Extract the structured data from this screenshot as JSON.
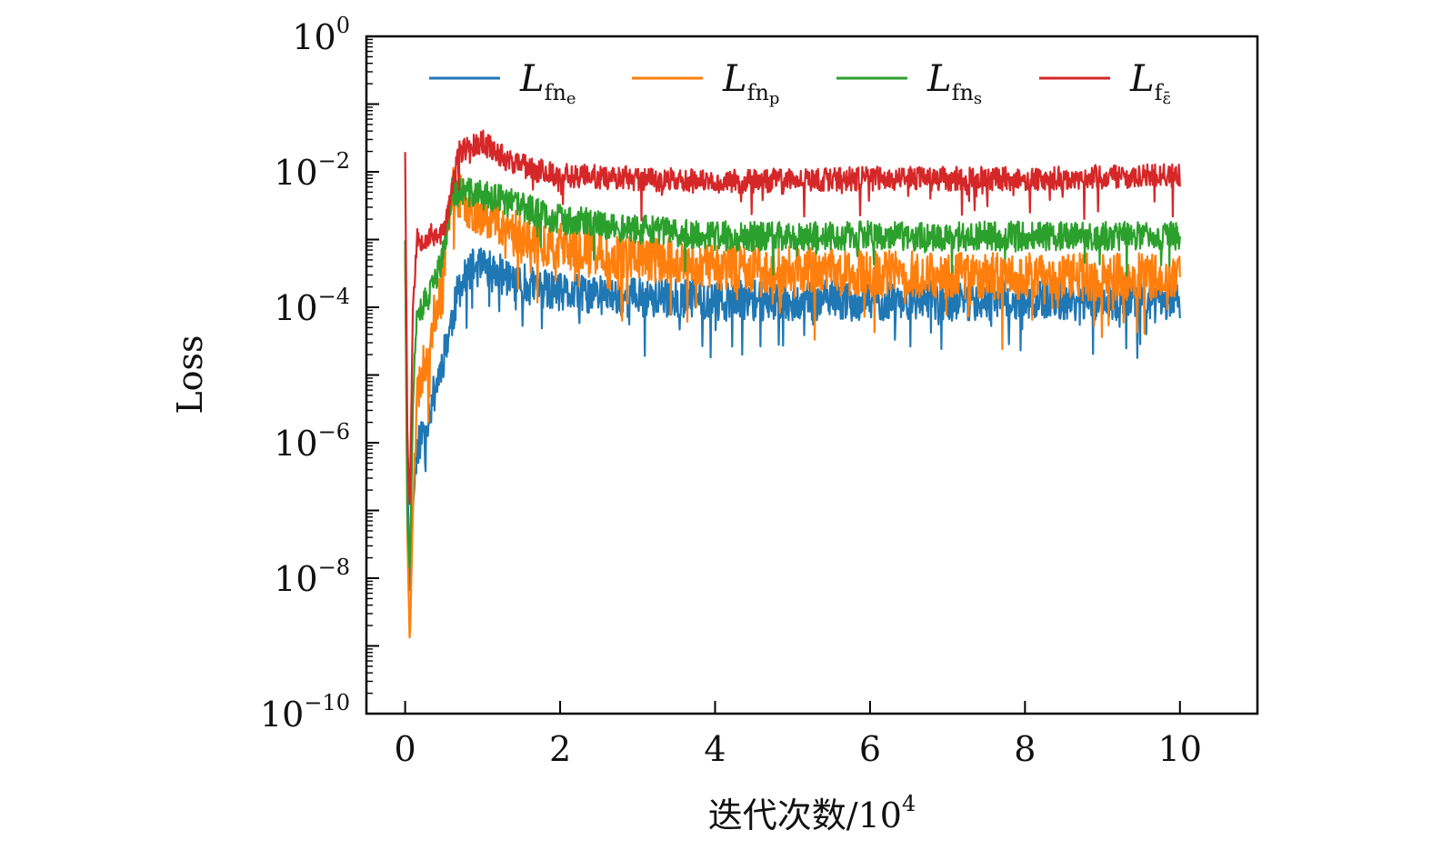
{
  "chart_data": {
    "type": "line",
    "title": "",
    "xlabel": "迭代次数/10",
    "xlabel_sup": "4",
    "ylabel": "Loss",
    "xlim": [
      -0.5,
      11
    ],
    "ylim_exp": [
      -10,
      0
    ],
    "y_scale": "log",
    "x_ticks": [
      "0",
      "2",
      "4",
      "6",
      "8",
      "10"
    ],
    "y_tick_base": "10",
    "y_tick_exps": [
      "0",
      "−2",
      "−4",
      "−6",
      "−8",
      "−10"
    ],
    "grid": false,
    "legend_placement": "top",
    "series": [
      {
        "name_main": "L",
        "name_sub": "fn",
        "name_subsub": "e",
        "color": "#1f77b4",
        "anchors": [
          [
            0.0,
            -3.0
          ],
          [
            0.03,
            -6.5
          ],
          [
            0.06,
            -8.3
          ],
          [
            0.1,
            -7.0
          ],
          [
            0.15,
            -6.1
          ],
          [
            0.3,
            -5.6
          ],
          [
            0.5,
            -4.7
          ],
          [
            0.7,
            -3.7
          ],
          [
            0.9,
            -3.4
          ],
          [
            1.2,
            -3.5
          ],
          [
            1.5,
            -3.65
          ],
          [
            2.0,
            -3.8
          ],
          [
            3.0,
            -3.85
          ],
          [
            4.0,
            -3.9
          ],
          [
            6.0,
            -3.9
          ],
          [
            8.0,
            -3.9
          ],
          [
            10.0,
            -3.9
          ]
        ],
        "noise": 0.3,
        "dip_rate": 0.05,
        "dip_size": 0.7,
        "seed": 11
      },
      {
        "name_main": "L",
        "name_sub": "fn",
        "name_subsub": "p",
        "color": "#ff7f0e",
        "anchors": [
          [
            0.0,
            -3.0
          ],
          [
            0.03,
            -7.5
          ],
          [
            0.06,
            -9.0
          ],
          [
            0.1,
            -7.0
          ],
          [
            0.15,
            -5.3
          ],
          [
            0.3,
            -4.6
          ],
          [
            0.5,
            -3.4
          ],
          [
            0.6,
            -2.2
          ],
          [
            0.8,
            -2.5
          ],
          [
            1.2,
            -2.7
          ],
          [
            1.6,
            -3.0
          ],
          [
            2.0,
            -3.1
          ],
          [
            3.0,
            -3.25
          ],
          [
            4.0,
            -3.4
          ],
          [
            6.0,
            -3.5
          ],
          [
            8.0,
            -3.55
          ],
          [
            10.0,
            -3.55
          ]
        ],
        "noise": 0.35,
        "dip_rate": 0.06,
        "dip_size": 0.9,
        "seed": 23
      },
      {
        "name_main": "L",
        "name_sub": "fn",
        "name_subsub": "s",
        "color": "#2ca02c",
        "anchors": [
          [
            0.0,
            -3.0
          ],
          [
            0.03,
            -7.2
          ],
          [
            0.06,
            -7.9
          ],
          [
            0.1,
            -5.5
          ],
          [
            0.15,
            -4.0
          ],
          [
            0.3,
            -3.9
          ],
          [
            0.5,
            -3.2
          ],
          [
            0.6,
            -2.3
          ],
          [
            0.8,
            -2.3
          ],
          [
            1.2,
            -2.4
          ],
          [
            1.6,
            -2.55
          ],
          [
            2.0,
            -2.7
          ],
          [
            3.0,
            -2.85
          ],
          [
            4.0,
            -2.95
          ],
          [
            6.0,
            -2.95
          ],
          [
            8.0,
            -2.95
          ],
          [
            10.0,
            -2.95
          ]
        ],
        "noise": 0.22,
        "dip_rate": 0.03,
        "dip_size": 0.5,
        "seed": 37
      },
      {
        "name_main": "L",
        "name_sub": "f",
        "name_subsub": "ε̄",
        "color": "#d62728",
        "anchors": [
          [
            0.0,
            -1.7
          ],
          [
            0.03,
            -6.0
          ],
          [
            0.06,
            -7.0
          ],
          [
            0.1,
            -4.0
          ],
          [
            0.15,
            -3.0
          ],
          [
            0.5,
            -2.9
          ],
          [
            0.7,
            -1.7
          ],
          [
            1.0,
            -1.55
          ],
          [
            1.3,
            -1.8
          ],
          [
            1.6,
            -1.95
          ],
          [
            2.0,
            -2.05
          ],
          [
            3.0,
            -2.1
          ],
          [
            4.0,
            -2.15
          ],
          [
            6.0,
            -2.1
          ],
          [
            8.0,
            -2.1
          ],
          [
            10.0,
            -2.05
          ]
        ],
        "noise": 0.18,
        "dip_rate": 0.04,
        "dip_size": 0.55,
        "seed": 53
      }
    ]
  }
}
